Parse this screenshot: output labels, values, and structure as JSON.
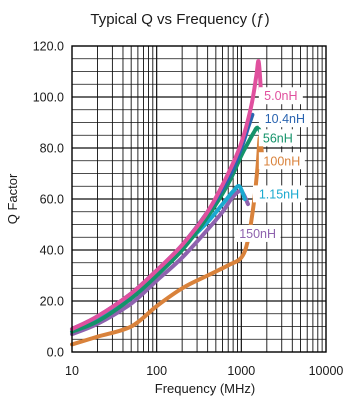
{
  "chart_data": {
    "type": "line",
    "title": "Typical Q vs Frequency (ƒ)",
    "xlabel": "Frequency (MHz)",
    "ylabel": "Q Factor",
    "xscale": "log",
    "xlim": [
      10,
      10000
    ],
    "ylim": [
      0,
      120
    ],
    "x_ticks": [
      "10",
      "100",
      "1000",
      "10000"
    ],
    "y_ticks": [
      "0.0",
      "20.0",
      "40.0",
      "60.0",
      "80.0",
      "100.0",
      "120.0"
    ],
    "grid": true,
    "series": [
      {
        "name": "5.0nH",
        "color": "#e0509e",
        "x": [
          10,
          20,
          50,
          100,
          200,
          400,
          700,
          1000,
          1300,
          1500,
          1600,
          1700
        ],
        "y": [
          9,
          14,
          23,
          32,
          42,
          55,
          70,
          82,
          96,
          108,
          114,
          103
        ]
      },
      {
        "name": "10.4nH",
        "color": "#2a64b0",
        "x": [
          10,
          20,
          50,
          100,
          200,
          400,
          700,
          1000,
          1200,
          1350
        ],
        "y": [
          9,
          14,
          23,
          32,
          42,
          55,
          68,
          80,
          88,
          93
        ]
      },
      {
        "name": "56nH",
        "color": "#14936a",
        "x": [
          10,
          20,
          50,
          100,
          200,
          400,
          700,
          1000,
          1200,
          1400,
          1550,
          1700
        ],
        "y": [
          8,
          12,
          21,
          30,
          40,
          53,
          66,
          77,
          82,
          86,
          88,
          86
        ]
      },
      {
        "name": "100nH",
        "color": "#d9823b",
        "x": [
          10,
          20,
          50,
          100,
          200,
          400,
          700,
          1000,
          1200,
          1400,
          1550,
          1650,
          1750
        ],
        "y": [
          3,
          6,
          10,
          18,
          25,
          30,
          34,
          37,
          44,
          58,
          72,
          84,
          78
        ]
      },
      {
        "name": "1.15nH",
        "color": "#1aa9cf",
        "x": [
          10,
          20,
          50,
          100,
          200,
          400,
          600,
          800,
          950,
          1100
        ],
        "y": [
          9,
          13,
          22,
          31,
          41,
          51,
          58,
          63,
          65,
          60
        ]
      },
      {
        "name": "150nH",
        "color": "#8e62ae",
        "x": [
          10,
          20,
          50,
          100,
          200,
          400,
          600,
          800,
          1000,
          1200
        ],
        "y": [
          7,
          11,
          19,
          28,
          37,
          48,
          55,
          61,
          63,
          58
        ]
      }
    ]
  }
}
